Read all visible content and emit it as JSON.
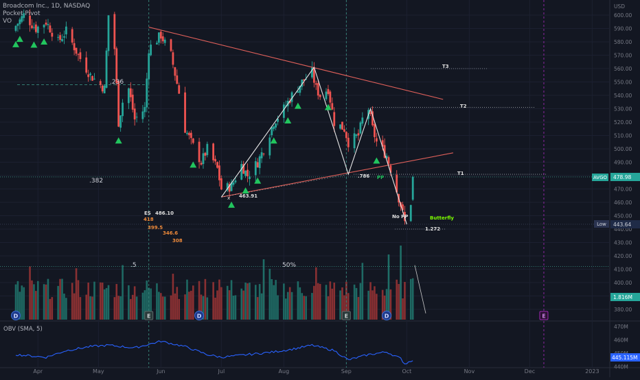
{
  "header": {
    "symbol_line": "Broadcom Inc., 1D, NASDAQ",
    "indicator_1": "Pocket Pivot",
    "indicator_2": "VO"
  },
  "price_axis": {
    "currency": "USD",
    "ticks": [
      600,
      590,
      580,
      570,
      560,
      550,
      540,
      530,
      520,
      510,
      500,
      490,
      480,
      470,
      460,
      450,
      440,
      430,
      420,
      410,
      400,
      390,
      380
    ],
    "last_price_label": "AVGO",
    "last_price": "478.98",
    "low_label": "Low",
    "low_value": "443.64",
    "volume_badge": "1.816M"
  },
  "obv_pane": {
    "title": "OBV (SMA, 5)",
    "ticks": [
      "470M",
      "460M",
      "450M",
      "440M"
    ],
    "value_badge": "445.115M"
  },
  "time_axis": [
    "Apr",
    "May",
    "Jun",
    "Jul",
    "Aug",
    "Sep",
    "Oct",
    "Nov",
    "Dec",
    "2023"
  ],
  "event_markers": {
    "dividend": "D",
    "earnings": "E"
  },
  "annotations": {
    "fib_236": ".236",
    "fib_382": ".382",
    "fib_5": ".5",
    "pct_50": "50%",
    "es_label": "ES",
    "es_value": "486.10",
    "es_targets": [
      "418",
      "399.5",
      "346.6",
      "308"
    ],
    "x_point": "x",
    "x_price": "463.91",
    "fib_786": ".786",
    "pp_label": "PP",
    "no_pp": "No PP",
    "butterfly": "Butterfly",
    "fib_1272": "1.272",
    "t1": "T1",
    "t2": "T2",
    "t3": "T3"
  },
  "colors": {
    "background": "#131722",
    "up_candle": "#26a69a",
    "down_candle": "#ef5350",
    "trendline": "#e0605a",
    "pattern_line": "#e6e6e6",
    "pivot_triangle": "#22c55e",
    "obv_line": "#2962ff",
    "earnings_future": "#9c27b0",
    "price_badge": "#26a69a",
    "low_badge": "#1e2740"
  },
  "chart_data": {
    "type": "candlestick",
    "title": "Broadcom Inc., 1D, NASDAQ",
    "ylabel": "USD",
    "ylim": [
      375,
      607
    ],
    "x_ticks": [
      "Apr",
      "May",
      "Jun",
      "Jul",
      "Aug",
      "Sep",
      "Oct",
      "Nov",
      "Dec",
      "2023"
    ],
    "close_anchors": [
      [
        "2022-03-21",
        592
      ],
      [
        "2022-03-25",
        600
      ],
      [
        "2022-03-31",
        590
      ],
      [
        "2022-04-05",
        595
      ],
      [
        "2022-04-11",
        580
      ],
      [
        "2022-04-15",
        588
      ],
      [
        "2022-04-21",
        570
      ],
      [
        "2022-04-27",
        555
      ],
      [
        "2022-05-04",
        545
      ],
      [
        "2022-05-06",
        600
      ],
      [
        "2022-05-09",
        575
      ],
      [
        "2022-05-11",
        520
      ],
      [
        "2022-05-13",
        535
      ],
      [
        "2022-05-16",
        545
      ],
      [
        "2022-05-19",
        522
      ],
      [
        "2022-05-24",
        530
      ],
      [
        "2022-05-26",
        575
      ],
      [
        "2022-06-01",
        585
      ],
      [
        "2022-06-06",
        570
      ],
      [
        "2022-06-10",
        542
      ],
      [
        "2022-06-13",
        515
      ],
      [
        "2022-06-16",
        505
      ],
      [
        "2022-06-21",
        490
      ],
      [
        "2022-06-24",
        500
      ],
      [
        "2022-06-29",
        485
      ],
      [
        "2022-07-01",
        470
      ],
      [
        "2022-07-06",
        472
      ],
      [
        "2022-07-11",
        488
      ],
      [
        "2022-07-14",
        480
      ],
      [
        "2022-07-19",
        490
      ],
      [
        "2022-07-22",
        500
      ],
      [
        "2022-07-27",
        520
      ],
      [
        "2022-08-01",
        530
      ],
      [
        "2022-08-05",
        540
      ],
      [
        "2022-08-10",
        550
      ],
      [
        "2022-08-15",
        557
      ],
      [
        "2022-08-17",
        545
      ],
      [
        "2022-08-19",
        540
      ],
      [
        "2022-08-23",
        545
      ],
      [
        "2022-08-26",
        520
      ],
      [
        "2022-08-31",
        515
      ],
      [
        "2022-09-02",
        505
      ],
      [
        "2022-09-07",
        510
      ],
      [
        "2022-09-09",
        522
      ],
      [
        "2022-09-12",
        530
      ],
      [
        "2022-09-14",
        515
      ],
      [
        "2022-09-16",
        505
      ],
      [
        "2022-09-21",
        495
      ],
      [
        "2022-09-23",
        485
      ],
      [
        "2022-09-28",
        458
      ],
      [
        "2022-09-30",
        445
      ],
      [
        "2022-10-03",
        460
      ],
      [
        "2022-10-04",
        479
      ]
    ],
    "series": [
      {
        "name": "OBV (SMA, 5)",
        "unit": "M",
        "anchors": [
          [
            "2022-03-21",
            449
          ],
          [
            "2022-04-05",
            447
          ],
          [
            "2022-04-15",
            452
          ],
          [
            "2022-04-27",
            455
          ],
          [
            "2022-05-06",
            456
          ],
          [
            "2022-05-19",
            454
          ],
          [
            "2022-06-01",
            459
          ],
          [
            "2022-06-13",
            455
          ],
          [
            "2022-06-24",
            449
          ],
          [
            "2022-07-01",
            447
          ],
          [
            "2022-07-14",
            449
          ],
          [
            "2022-07-27",
            451
          ],
          [
            "2022-08-05",
            453
          ],
          [
            "2022-08-15",
            456
          ],
          [
            "2022-08-26",
            452
          ],
          [
            "2022-09-02",
            445
          ],
          [
            "2022-09-12",
            449
          ],
          [
            "2022-09-21",
            451
          ],
          [
            "2022-09-28",
            446
          ],
          [
            "2022-09-30",
            442
          ],
          [
            "2022-10-04",
            445.1
          ]
        ]
      }
    ],
    "horizontal_levels": [
      {
        "label": "T1",
        "value": 481
      },
      {
        "label": "T2",
        "value": 531
      },
      {
        "label": "T3",
        "value": 560
      },
      {
        "label": "1.272",
        "value": 440
      },
      {
        "label": ".236",
        "value": 548
      },
      {
        "label": ".382",
        "value": 479
      },
      {
        "label": ".5",
        "value": 412
      }
    ],
    "pattern_points": [
      {
        "label": "X",
        "date": "2022-07-01",
        "value": 463.91
      },
      {
        "label": "A",
        "date": "2022-08-16",
        "value": 561
      },
      {
        "label": "B",
        "date": "2022-09-02",
        "value": 481
      },
      {
        "label": "C",
        "date": "2022-09-13",
        "value": 530
      },
      {
        "label": "D",
        "date": "2022-10-01",
        "value": 443.64
      }
    ],
    "trendlines": [
      {
        "from": [
          "2022-05-26",
          591
        ],
        "to": [
          "2022-10-19",
          537
        ]
      },
      {
        "from": [
          "2022-07-01",
          464
        ],
        "to": [
          "2022-10-24",
          497
        ]
      }
    ],
    "events": [
      {
        "type": "D",
        "date": "2022-03-21"
      },
      {
        "type": "E",
        "date": "2022-05-26"
      },
      {
        "type": "D",
        "date": "2022-06-20"
      },
      {
        "type": "E",
        "date": "2022-09-01"
      },
      {
        "type": "D",
        "date": "2022-09-21"
      },
      {
        "type": "E",
        "date": "2022-12-08"
      }
    ]
  }
}
